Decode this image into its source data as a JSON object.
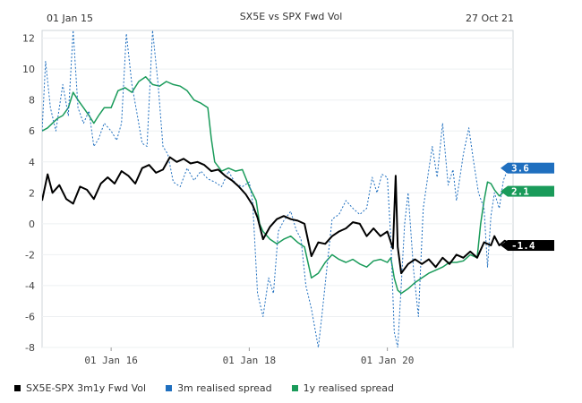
{
  "header": {
    "title": "SX5E vs SPX Fwd Vol",
    "start_date": "01 Jan 15",
    "end_date": "27 Oct 21"
  },
  "chart_data": {
    "type": "line",
    "title": "SX5E vs SPX Fwd Vol",
    "xlabel": "",
    "ylabel": "",
    "x_range": [
      2015.0,
      2021.82
    ],
    "ylim": [
      -8,
      12.5
    ],
    "yticks": [
      12,
      10,
      8,
      6,
      4,
      2,
      0,
      -2,
      -4,
      -6,
      -8
    ],
    "xticks": [
      {
        "x": 2016.0,
        "label": "01 Jan 16"
      },
      {
        "x": 2018.0,
        "label": "01 Jan 18"
      },
      {
        "x": 2020.0,
        "label": "01 Jan 20"
      }
    ],
    "legend_position": "bottom-left",
    "series": [
      {
        "name": "SX5E-SPX 3m1y Fwd Vol",
        "color": "#000000",
        "style": "solid",
        "last_label": "-1.4",
        "points": [
          [
            2015.0,
            1.5
          ],
          [
            2015.08,
            3.2
          ],
          [
            2015.15,
            2.0
          ],
          [
            2015.25,
            2.5
          ],
          [
            2015.35,
            1.6
          ],
          [
            2015.45,
            1.3
          ],
          [
            2015.55,
            2.4
          ],
          [
            2015.65,
            2.2
          ],
          [
            2015.75,
            1.6
          ],
          [
            2015.85,
            2.6
          ],
          [
            2015.95,
            3.0
          ],
          [
            2016.05,
            2.6
          ],
          [
            2016.15,
            3.4
          ],
          [
            2016.25,
            3.1
          ],
          [
            2016.35,
            2.6
          ],
          [
            2016.45,
            3.6
          ],
          [
            2016.55,
            3.8
          ],
          [
            2016.65,
            3.3
          ],
          [
            2016.75,
            3.5
          ],
          [
            2016.85,
            4.3
          ],
          [
            2016.95,
            4.0
          ],
          [
            2017.05,
            4.2
          ],
          [
            2017.15,
            3.9
          ],
          [
            2017.25,
            4.0
          ],
          [
            2017.35,
            3.8
          ],
          [
            2017.45,
            3.4
          ],
          [
            2017.55,
            3.5
          ],
          [
            2017.65,
            3.1
          ],
          [
            2017.75,
            2.8
          ],
          [
            2017.85,
            2.4
          ],
          [
            2017.95,
            1.9
          ],
          [
            2018.05,
            1.2
          ],
          [
            2018.12,
            0.4
          ],
          [
            2018.2,
            -1.0
          ],
          [
            2018.3,
            -0.2
          ],
          [
            2018.4,
            0.3
          ],
          [
            2018.5,
            0.5
          ],
          [
            2018.6,
            0.3
          ],
          [
            2018.7,
            0.2
          ],
          [
            2018.8,
            0.0
          ],
          [
            2018.9,
            -2.1
          ],
          [
            2019.0,
            -1.2
          ],
          [
            2019.1,
            -1.3
          ],
          [
            2019.2,
            -0.8
          ],
          [
            2019.3,
            -0.5
          ],
          [
            2019.4,
            -0.3
          ],
          [
            2019.5,
            0.1
          ],
          [
            2019.6,
            0.0
          ],
          [
            2019.7,
            -0.8
          ],
          [
            2019.8,
            -0.3
          ],
          [
            2019.9,
            -0.8
          ],
          [
            2020.0,
            -0.5
          ],
          [
            2020.08,
            -1.6
          ],
          [
            2020.12,
            3.1
          ],
          [
            2020.15,
            -1.5
          ],
          [
            2020.2,
            -3.2
          ],
          [
            2020.3,
            -2.6
          ],
          [
            2020.4,
            -2.3
          ],
          [
            2020.5,
            -2.6
          ],
          [
            2020.6,
            -2.3
          ],
          [
            2020.7,
            -2.8
          ],
          [
            2020.8,
            -2.2
          ],
          [
            2020.9,
            -2.6
          ],
          [
            2021.0,
            -2.0
          ],
          [
            2021.1,
            -2.2
          ],
          [
            2021.2,
            -1.8
          ],
          [
            2021.3,
            -2.2
          ],
          [
            2021.4,
            -1.2
          ],
          [
            2021.5,
            -1.4
          ],
          [
            2021.55,
            -0.8
          ],
          [
            2021.62,
            -1.4
          ],
          [
            2021.7,
            -1.1
          ],
          [
            2021.82,
            -1.4
          ]
        ]
      },
      {
        "name": "3m realised spread",
        "color": "#1f6fbf",
        "style": "dotted",
        "last_label": "3.6",
        "points": [
          [
            2015.0,
            6.0
          ],
          [
            2015.05,
            10.5
          ],
          [
            2015.12,
            7.5
          ],
          [
            2015.2,
            6.0
          ],
          [
            2015.3,
            9.0
          ],
          [
            2015.38,
            7.0
          ],
          [
            2015.45,
            12.5
          ],
          [
            2015.52,
            7.5
          ],
          [
            2015.6,
            6.5
          ],
          [
            2015.68,
            7.3
          ],
          [
            2015.75,
            5.0
          ],
          [
            2015.82,
            5.5
          ],
          [
            2015.9,
            6.5
          ],
          [
            2016.0,
            6.0
          ],
          [
            2016.08,
            5.4
          ],
          [
            2016.15,
            6.5
          ],
          [
            2016.22,
            12.3
          ],
          [
            2016.3,
            9.0
          ],
          [
            2016.38,
            7.0
          ],
          [
            2016.45,
            5.2
          ],
          [
            2016.52,
            5.0
          ],
          [
            2016.6,
            12.5
          ],
          [
            2016.68,
            9.0
          ],
          [
            2016.75,
            5.0
          ],
          [
            2016.82,
            4.5
          ],
          [
            2016.9,
            2.7
          ],
          [
            2017.0,
            2.4
          ],
          [
            2017.1,
            3.6
          ],
          [
            2017.2,
            2.8
          ],
          [
            2017.3,
            3.4
          ],
          [
            2017.4,
            2.9
          ],
          [
            2017.5,
            2.7
          ],
          [
            2017.6,
            2.4
          ],
          [
            2017.7,
            3.4
          ],
          [
            2017.8,
            2.6
          ],
          [
            2017.9,
            2.4
          ],
          [
            2018.0,
            2.7
          ],
          [
            2018.05,
            1.4
          ],
          [
            2018.12,
            -4.5
          ],
          [
            2018.2,
            -6.0
          ],
          [
            2018.28,
            -3.5
          ],
          [
            2018.35,
            -4.5
          ],
          [
            2018.42,
            -0.5
          ],
          [
            2018.5,
            0.2
          ],
          [
            2018.6,
            0.8
          ],
          [
            2018.68,
            -0.4
          ],
          [
            2018.75,
            -1.0
          ],
          [
            2018.82,
            -4.0
          ],
          [
            2018.9,
            -5.5
          ],
          [
            2019.0,
            -8.0
          ],
          [
            2019.05,
            -6.0
          ],
          [
            2019.12,
            -3.0
          ],
          [
            2019.2,
            0.3
          ],
          [
            2019.3,
            0.6
          ],
          [
            2019.4,
            1.5
          ],
          [
            2019.5,
            1.0
          ],
          [
            2019.6,
            0.6
          ],
          [
            2019.7,
            1.0
          ],
          [
            2019.78,
            3.0
          ],
          [
            2019.85,
            2.0
          ],
          [
            2019.92,
            3.2
          ],
          [
            2020.0,
            3.0
          ],
          [
            2020.05,
            -1.0
          ],
          [
            2020.1,
            -7.0
          ],
          [
            2020.15,
            -8.0
          ],
          [
            2020.2,
            -4.0
          ],
          [
            2020.25,
            0.0
          ],
          [
            2020.3,
            2.0
          ],
          [
            2020.38,
            -3.0
          ],
          [
            2020.45,
            -6.0
          ],
          [
            2020.52,
            1.0
          ],
          [
            2020.6,
            3.5
          ],
          [
            2020.65,
            5.0
          ],
          [
            2020.72,
            3.0
          ],
          [
            2020.8,
            6.5
          ],
          [
            2020.88,
            2.5
          ],
          [
            2020.95,
            3.5
          ],
          [
            2021.0,
            1.5
          ],
          [
            2021.1,
            4.5
          ],
          [
            2021.18,
            6.2
          ],
          [
            2021.25,
            4.0
          ],
          [
            2021.32,
            2.0
          ],
          [
            2021.4,
            1.0
          ],
          [
            2021.45,
            -2.8
          ],
          [
            2021.5,
            0.5
          ],
          [
            2021.55,
            2.0
          ],
          [
            2021.62,
            1.0
          ],
          [
            2021.68,
            2.8
          ],
          [
            2021.75,
            3.6
          ],
          [
            2021.82,
            3.6
          ]
        ]
      },
      {
        "name": "1y realised spread",
        "color": "#1a9b5a",
        "style": "solid",
        "last_label": "2.1",
        "points": [
          [
            2015.0,
            6.0
          ],
          [
            2015.08,
            6.2
          ],
          [
            2015.15,
            6.5
          ],
          [
            2015.22,
            6.8
          ],
          [
            2015.3,
            7.0
          ],
          [
            2015.38,
            7.5
          ],
          [
            2015.45,
            8.5
          ],
          [
            2015.52,
            8.0
          ],
          [
            2015.6,
            7.5
          ],
          [
            2015.68,
            7.0
          ],
          [
            2015.75,
            6.5
          ],
          [
            2015.82,
            7.0
          ],
          [
            2015.9,
            7.5
          ],
          [
            2016.0,
            7.5
          ],
          [
            2016.1,
            8.6
          ],
          [
            2016.2,
            8.8
          ],
          [
            2016.3,
            8.5
          ],
          [
            2016.4,
            9.2
          ],
          [
            2016.5,
            9.5
          ],
          [
            2016.6,
            9.0
          ],
          [
            2016.7,
            8.9
          ],
          [
            2016.8,
            9.2
          ],
          [
            2016.9,
            9.0
          ],
          [
            2017.0,
            8.9
          ],
          [
            2017.1,
            8.6
          ],
          [
            2017.2,
            8.0
          ],
          [
            2017.3,
            7.8
          ],
          [
            2017.4,
            7.5
          ],
          [
            2017.45,
            5.5
          ],
          [
            2017.5,
            4.0
          ],
          [
            2017.6,
            3.4
          ],
          [
            2017.7,
            3.6
          ],
          [
            2017.8,
            3.4
          ],
          [
            2017.9,
            3.5
          ],
          [
            2018.0,
            2.4
          ],
          [
            2018.1,
            1.5
          ],
          [
            2018.15,
            0.0
          ],
          [
            2018.2,
            -0.5
          ],
          [
            2018.3,
            -1.0
          ],
          [
            2018.4,
            -1.3
          ],
          [
            2018.5,
            -1.0
          ],
          [
            2018.6,
            -0.8
          ],
          [
            2018.7,
            -1.2
          ],
          [
            2018.8,
            -1.5
          ],
          [
            2018.9,
            -3.5
          ],
          [
            2019.0,
            -3.2
          ],
          [
            2019.1,
            -2.5
          ],
          [
            2019.2,
            -2.0
          ],
          [
            2019.3,
            -2.3
          ],
          [
            2019.4,
            -2.5
          ],
          [
            2019.5,
            -2.3
          ],
          [
            2019.6,
            -2.6
          ],
          [
            2019.7,
            -2.8
          ],
          [
            2019.8,
            -2.4
          ],
          [
            2019.9,
            -2.3
          ],
          [
            2020.0,
            -2.5
          ],
          [
            2020.05,
            -2.2
          ],
          [
            2020.1,
            -3.5
          ],
          [
            2020.15,
            -4.3
          ],
          [
            2020.2,
            -4.5
          ],
          [
            2020.3,
            -4.2
          ],
          [
            2020.4,
            -3.8
          ],
          [
            2020.5,
            -3.5
          ],
          [
            2020.6,
            -3.2
          ],
          [
            2020.7,
            -3.0
          ],
          [
            2020.8,
            -2.8
          ],
          [
            2020.9,
            -2.5
          ],
          [
            2021.0,
            -2.5
          ],
          [
            2021.1,
            -2.4
          ],
          [
            2021.2,
            -2.0
          ],
          [
            2021.3,
            -2.2
          ],
          [
            2021.35,
            0.0
          ],
          [
            2021.4,
            1.5
          ],
          [
            2021.45,
            2.7
          ],
          [
            2021.5,
            2.6
          ],
          [
            2021.55,
            2.2
          ],
          [
            2021.62,
            1.8
          ],
          [
            2021.7,
            2.1
          ],
          [
            2021.82,
            2.1
          ]
        ]
      }
    ]
  }
}
